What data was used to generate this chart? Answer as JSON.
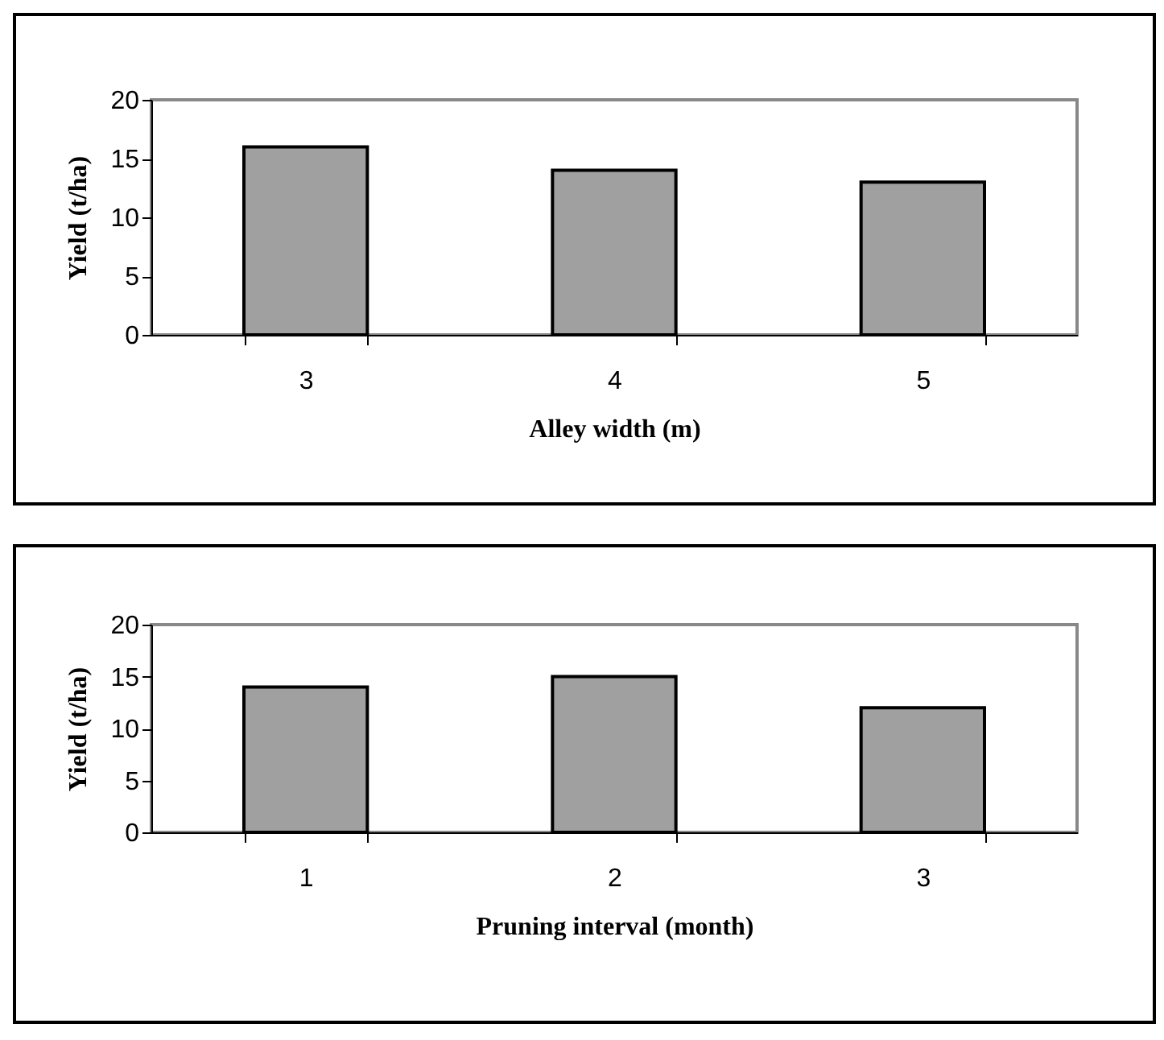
{
  "chart_data": [
    {
      "type": "bar",
      "xlabel": "Alley width (m)",
      "ylabel": "Yield (t/ha)",
      "categories": [
        "3",
        "4",
        "5"
      ],
      "values": [
        16,
        14,
        13
      ],
      "color": "#a0a0a0",
      "ylim": [
        0,
        20
      ],
      "yticks": [
        0,
        5,
        10,
        15,
        20
      ],
      "grid": false
    },
    {
      "type": "bar",
      "xlabel": "Pruning interval (month)",
      "ylabel": "Yield (t/ha)",
      "categories": [
        "1",
        "2",
        "3"
      ],
      "values": [
        14,
        15,
        12
      ],
      "color": "#a0a0a0",
      "ylim": [
        0,
        20
      ],
      "yticks": [
        0,
        5,
        10,
        15,
        20
      ],
      "grid": false
    }
  ]
}
